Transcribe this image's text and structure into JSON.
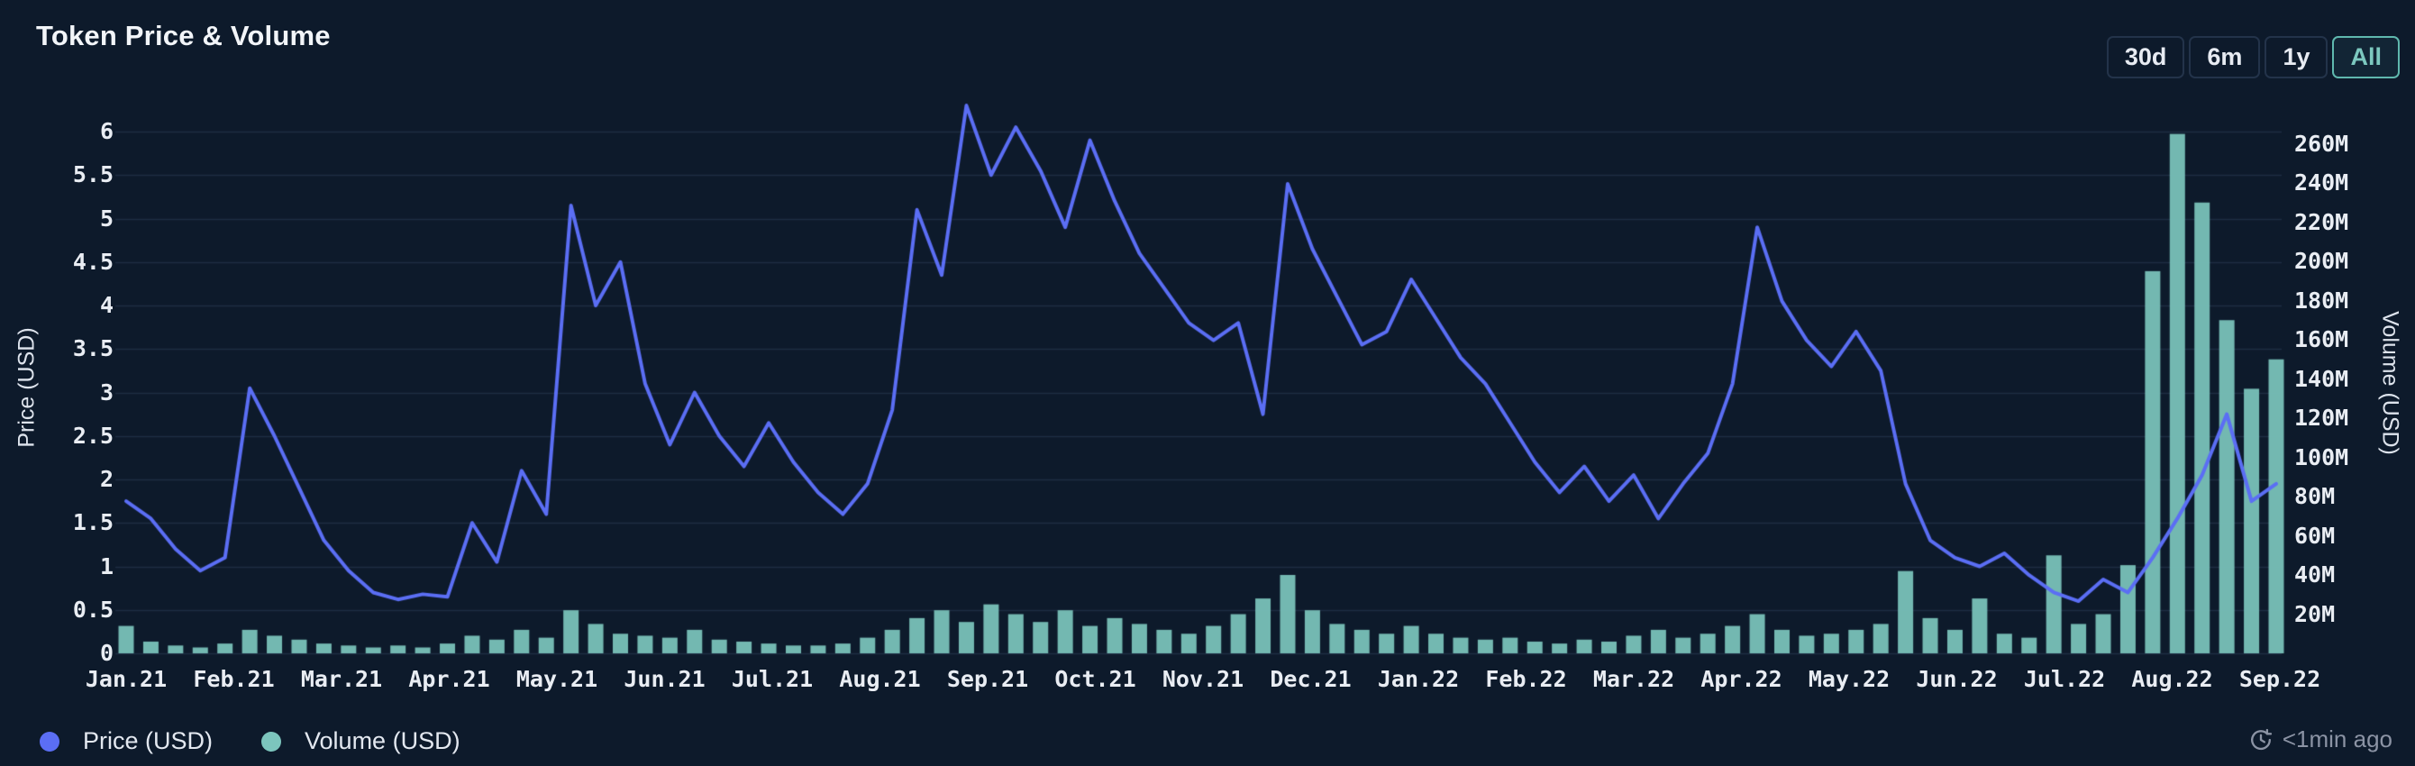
{
  "header": {
    "title": "Token Price & Volume",
    "range_buttons": [
      {
        "label": "30d",
        "active": false
      },
      {
        "label": "6m",
        "active": false
      },
      {
        "label": "1y",
        "active": false
      },
      {
        "label": "All",
        "active": true
      }
    ]
  },
  "chart_data": {
    "type": "combo-line-bar",
    "title": "Token Price & Volume",
    "x": {
      "interval": "weekly",
      "start": "Jan 2021",
      "end": "Sep 2022",
      "month_labels": [
        "Jan.21",
        "Feb.21",
        "Mar.21",
        "Apr.21",
        "May.21",
        "Jun.21",
        "Jul.21",
        "Aug.21",
        "Sep.21",
        "Oct.21",
        "Nov.21",
        "Dec.21",
        "Jan.22",
        "Feb.22",
        "Mar.22",
        "Apr.22",
        "May.22",
        "Jun.22",
        "Jul.22",
        "Aug.22",
        "Sep.22"
      ]
    },
    "y_left": {
      "title": "Price (USD)",
      "tick_labels": [
        "0",
        "0.5",
        "1",
        "1.5",
        "2",
        "2.5",
        "3",
        "3.5",
        "4",
        "4.5",
        "5",
        "5.5",
        "6"
      ],
      "tick_values": [
        0,
        0.5,
        1,
        1.5,
        2,
        2.5,
        3,
        3.5,
        4,
        4.5,
        5,
        5.5,
        6
      ],
      "range": [
        0,
        6.6
      ],
      "grid": true
    },
    "y_right": {
      "title": "Volume (USD)",
      "tick_labels": [
        "20M",
        "40M",
        "60M",
        "80M",
        "100M",
        "120M",
        "140M",
        "160M",
        "180M",
        "200M",
        "220M",
        "240M",
        "260M"
      ],
      "tick_values_musd": [
        20,
        40,
        60,
        80,
        100,
        120,
        140,
        160,
        180,
        200,
        220,
        240,
        260
      ],
      "unit": "million USD",
      "range_musd": [
        0,
        292
      ]
    },
    "series": [
      {
        "name": "Price (USD)",
        "type": "line",
        "axis": "left",
        "color": "#5b6ef4",
        "values": [
          1.75,
          1.55,
          1.2,
          0.95,
          1.1,
          3.05,
          2.5,
          1.9,
          1.3,
          0.95,
          0.7,
          0.62,
          0.68,
          0.65,
          1.5,
          1.05,
          2.1,
          1.6,
          5.15,
          4.0,
          4.5,
          3.1,
          2.4,
          3.0,
          2.5,
          2.15,
          2.65,
          2.2,
          1.85,
          1.6,
          1.95,
          2.8,
          5.1,
          4.35,
          6.3,
          5.5,
          6.05,
          5.55,
          4.9,
          5.9,
          5.2,
          4.6,
          4.2,
          3.8,
          3.6,
          3.8,
          2.75,
          5.4,
          4.65,
          4.1,
          3.55,
          3.7,
          4.3,
          3.85,
          3.4,
          3.1,
          2.65,
          2.2,
          1.85,
          2.15,
          1.75,
          2.05,
          1.55,
          1.95,
          2.3,
          3.1,
          4.9,
          4.05,
          3.6,
          3.3,
          3.7,
          3.25,
          1.95,
          1.3,
          1.1,
          1.0,
          1.15,
          0.9,
          0.7,
          0.6,
          0.85,
          0.7,
          1.1,
          1.55,
          2.05,
          2.75,
          1.75,
          1.95
        ]
      },
      {
        "name": "Volume (USD)",
        "type": "bar",
        "axis": "right",
        "color": "#7cc5bd",
        "values_musd": [
          14,
          6,
          4,
          3,
          5,
          12,
          9,
          7,
          5,
          4,
          3,
          4,
          3,
          5,
          9,
          7,
          12,
          8,
          22,
          15,
          10,
          9,
          8,
          12,
          7,
          6,
          5,
          4,
          4,
          5,
          8,
          12,
          18,
          22,
          16,
          25,
          20,
          16,
          22,
          14,
          18,
          15,
          12,
          10,
          14,
          20,
          28,
          40,
          22,
          15,
          12,
          10,
          14,
          10,
          8,
          7,
          8,
          6,
          5,
          7,
          6,
          9,
          12,
          8,
          10,
          14,
          20,
          12,
          9,
          10,
          12,
          15,
          42,
          18,
          12,
          28,
          10,
          8,
          50,
          15,
          20,
          45,
          195,
          265,
          230,
          170,
          135,
          150
        ]
      }
    ],
    "legend_position": "bottom-left"
  },
  "legend": [
    {
      "label": "Price (USD)",
      "color": "#5b6ef4"
    },
    {
      "label": "Volume (USD)",
      "color": "#7cc5bd"
    }
  ],
  "footer": {
    "updated": "<1min ago"
  },
  "colors": {
    "background": "#0d1a2b",
    "grid": "rgba(125,150,190,0.16)",
    "tick_text": "#e9edf3",
    "muted_text": "#8b93a4",
    "accent_teal": "#6fc0b8",
    "price_line": "#5b6ef4",
    "volume_bar": "#7cc5bd"
  }
}
